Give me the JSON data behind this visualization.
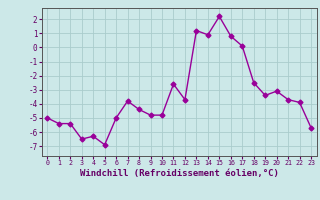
{
  "x": [
    0,
    1,
    2,
    3,
    4,
    5,
    6,
    7,
    8,
    9,
    10,
    11,
    12,
    13,
    14,
    15,
    16,
    17,
    18,
    19,
    20,
    21,
    22,
    23
  ],
  "y": [
    -5.0,
    -5.4,
    -5.4,
    -6.5,
    -6.3,
    -6.9,
    -5.0,
    -3.8,
    -4.4,
    -4.8,
    -4.8,
    -2.6,
    -3.7,
    1.2,
    0.9,
    2.2,
    0.8,
    0.1,
    -2.5,
    -3.4,
    -3.1,
    -3.7,
    -3.9,
    -5.7
  ],
  "line_color": "#990099",
  "marker": "D",
  "markersize": 2.5,
  "linewidth": 1.0,
  "xlabel": "Windchill (Refroidissement éolien,°C)",
  "xlabel_fontsize": 6.5,
  "xlim": [
    -0.5,
    23.5
  ],
  "ylim": [
    -7.7,
    2.8
  ],
  "yticks": [
    2,
    1,
    0,
    -1,
    -2,
    -3,
    -4,
    -5,
    -6,
    -7
  ],
  "xticks": [
    0,
    1,
    2,
    3,
    4,
    5,
    6,
    7,
    8,
    9,
    10,
    11,
    12,
    13,
    14,
    15,
    16,
    17,
    18,
    19,
    20,
    21,
    22,
    23
  ],
  "bg_color": "#cce8e8",
  "grid_color": "#aacccc",
  "tick_color": "#660066",
  "label_color": "#660066",
  "spine_color": "#555555"
}
